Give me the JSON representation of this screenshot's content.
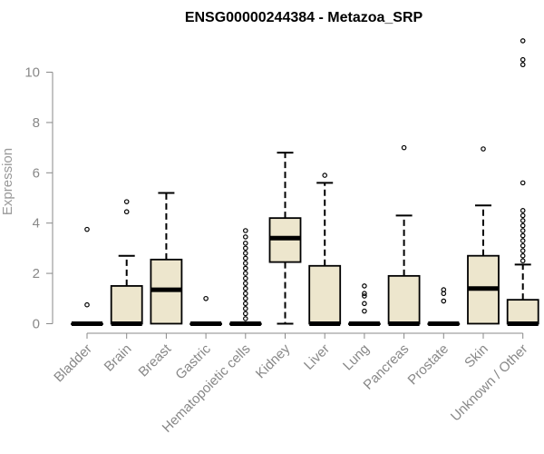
{
  "chart_data": {
    "type": "box",
    "title": "ENSG00000244384 - Metazoa_SRP",
    "xlabel": "",
    "ylabel": "Expression",
    "ylim": [
      -0.2,
      11.5
    ],
    "yticks": [
      0,
      2,
      4,
      6,
      8,
      10
    ],
    "grid": false,
    "legend": "none",
    "colors": {
      "box_fill": "#ede6cd",
      "stroke": "#000000",
      "axis": "#888888"
    },
    "categories": [
      "Bladder",
      "Brain",
      "Breast",
      "Gastric",
      "Hematopoietic cells",
      "Kidney",
      "Liver",
      "Lung",
      "Pancreas",
      "Prostate",
      "Skin",
      "Unknown / Other"
    ],
    "boxes": [
      {
        "category": "Bladder",
        "min": 0,
        "q1": 0,
        "median": 0,
        "q3": 0,
        "max": 0,
        "outliers": [
          0.75,
          3.75
        ]
      },
      {
        "category": "Brain",
        "min": 0,
        "q1": 0,
        "median": 0,
        "q3": 1.5,
        "max": 2.7,
        "outliers": [
          4.45,
          4.85
        ]
      },
      {
        "category": "Breast",
        "min": 0,
        "q1": 0,
        "median": 1.35,
        "q3": 2.55,
        "max": 5.2,
        "outliers": []
      },
      {
        "category": "Gastric",
        "min": 0,
        "q1": 0,
        "median": 0,
        "q3": 0,
        "max": 0,
        "outliers": [
          1.0
        ]
      },
      {
        "category": "Hematopoietic cells",
        "min": 0,
        "q1": 0,
        "median": 0,
        "q3": 0,
        "max": 0,
        "outliers": [
          0.2,
          0.4,
          0.6,
          0.8,
          1.0,
          1.2,
          1.4,
          1.6,
          1.8,
          2.0,
          2.2,
          2.4,
          2.6,
          2.8,
          3.0,
          3.2,
          3.45,
          3.7
        ]
      },
      {
        "category": "Kidney",
        "min": 0,
        "q1": 2.45,
        "median": 3.4,
        "q3": 4.2,
        "max": 6.8,
        "outliers": []
      },
      {
        "category": "Liver",
        "min": 0,
        "q1": 0,
        "median": 0,
        "q3": 2.3,
        "max": 5.6,
        "outliers": [
          5.9
        ]
      },
      {
        "category": "Lung",
        "min": 0,
        "q1": 0,
        "median": 0,
        "q3": 0,
        "max": 0,
        "outliers": [
          0.5,
          0.8,
          1.1,
          1.2,
          1.5
        ]
      },
      {
        "category": "Pancreas",
        "min": 0,
        "q1": 0,
        "median": 0,
        "q3": 1.9,
        "max": 4.3,
        "outliers": [
          7.0
        ]
      },
      {
        "category": "Prostate",
        "min": 0,
        "q1": 0,
        "median": 0,
        "q3": 0,
        "max": 0,
        "outliers": [
          0.9,
          1.2,
          1.35
        ]
      },
      {
        "category": "Skin",
        "min": 0,
        "q1": 0,
        "median": 1.4,
        "q3": 2.7,
        "max": 4.7,
        "outliers": [
          6.95
        ]
      },
      {
        "category": "Unknown / Other",
        "min": 0,
        "q1": 0,
        "median": 0,
        "q3": 0.95,
        "max": 2.35,
        "outliers": [
          2.5,
          2.7,
          2.9,
          3.1,
          3.3,
          3.5,
          3.7,
          3.9,
          4.1,
          4.3,
          4.5,
          5.6,
          10.3,
          10.5,
          11.25
        ]
      }
    ]
  }
}
